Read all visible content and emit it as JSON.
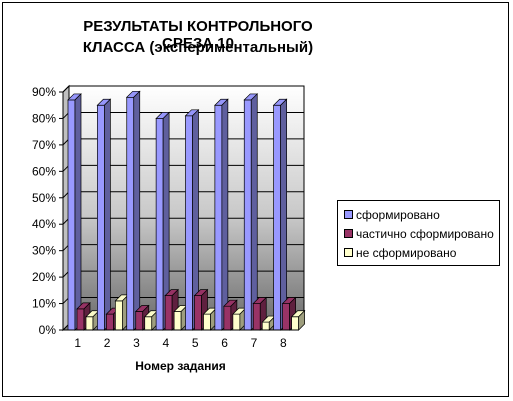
{
  "chart_data": {
    "type": "bar",
    "title": "РЕЗУЛЬТАТЫ  КОНТРОЛЬНОГО СРЕЗА 10 КЛАССА (экспериментальный)",
    "title_lines": [
      "РЕЗУЛЬТАТЫ  КОНТРОЛЬНОГО СРЕЗА 10",
      "КЛАССА (экспериментальный)"
    ],
    "xlabel": "Номер задания",
    "ylabel": "",
    "categories": [
      "1",
      "2",
      "3",
      "4",
      "5",
      "6",
      "7",
      "8"
    ],
    "ylim": [
      0,
      90
    ],
    "yticks": [
      "0%",
      "10%",
      "20%",
      "30%",
      "40%",
      "50%",
      "60%",
      "70%",
      "80%",
      "90%"
    ],
    "grid": true,
    "legend_position": "right",
    "series": [
      {
        "name": "сформировано",
        "color": "#9999ff",
        "values": [
          87,
          85,
          88,
          80,
          81,
          85,
          87,
          85
        ]
      },
      {
        "name": "частично сформировано",
        "color": "#993366",
        "values": [
          8,
          6,
          7,
          13,
          13,
          9,
          10,
          10
        ]
      },
      {
        "name": "не сформировано",
        "color": "#ffffcc",
        "values": [
          5,
          11,
          5,
          7,
          6,
          6,
          3,
          5
        ]
      }
    ]
  }
}
